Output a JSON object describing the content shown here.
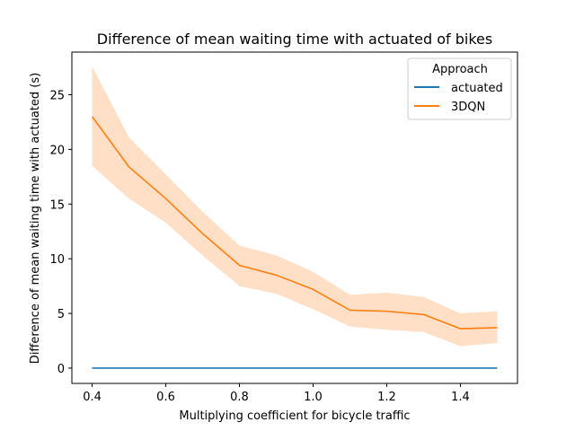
{
  "chart_data": {
    "type": "line",
    "title": "Difference of mean waiting time with actuated of bikes",
    "xlabel": "Multiplying coefficient for bicycle traffic",
    "ylabel": "Difference of mean waiting time with actuated (s)",
    "xlim": [
      0.345,
      1.555
    ],
    "ylim": [
      -1.4,
      28.9
    ],
    "x": [
      0.4,
      0.5,
      0.6,
      0.7,
      0.8,
      0.9,
      1.0,
      1.1,
      1.2,
      1.3,
      1.4,
      1.5
    ],
    "xticks": [
      0.4,
      0.6,
      0.8,
      1.0,
      1.2,
      1.4
    ],
    "xtick_labels": [
      "0.4",
      "0.6",
      "0.8",
      "1.0",
      "1.2",
      "1.4"
    ],
    "yticks": [
      0,
      5,
      10,
      15,
      20,
      25
    ],
    "ytick_labels": [
      "0",
      "5",
      "10",
      "15",
      "20",
      "25"
    ],
    "grid": false,
    "legend": {
      "title": "Approach",
      "placement": "top-right"
    },
    "series": [
      {
        "name": "actuated",
        "color": "#1f77b4",
        "values": [
          0,
          0,
          0,
          0,
          0,
          0,
          0,
          0,
          0,
          0,
          0,
          0
        ]
      },
      {
        "name": "3DQN",
        "color": "#ff7f0e",
        "band_color": "#ffdcc0",
        "values": [
          23.0,
          18.4,
          15.5,
          12.3,
          9.4,
          8.5,
          7.2,
          5.3,
          5.2,
          4.9,
          3.6,
          3.7
        ],
        "lower": [
          18.5,
          15.5,
          13.3,
          10.3,
          7.5,
          6.8,
          5.4,
          3.8,
          3.5,
          3.3,
          2.0,
          2.3
        ],
        "upper": [
          27.6,
          21.1,
          17.7,
          14.3,
          11.2,
          10.3,
          8.8,
          6.7,
          6.9,
          6.5,
          5.0,
          5.2
        ]
      }
    ]
  }
}
